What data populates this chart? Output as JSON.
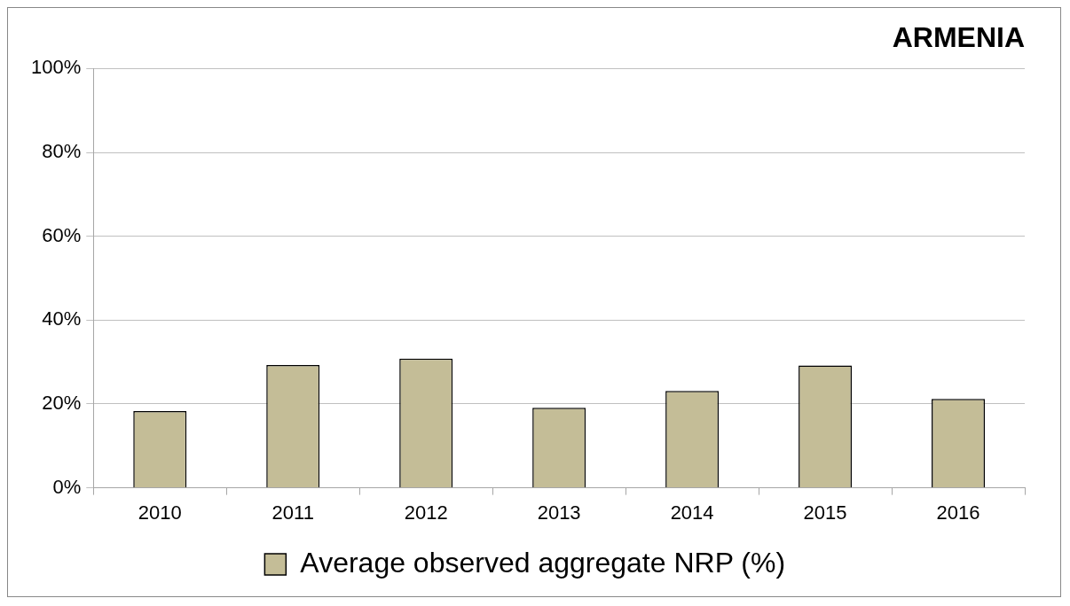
{
  "chart_data": {
    "type": "bar",
    "title": "ARMENIA",
    "categories": [
      "2010",
      "2011",
      "2012",
      "2013",
      "2014",
      "2015",
      "2016"
    ],
    "series": [
      {
        "name": "Average observed aggregate NRP (%)",
        "color": "#c4bd97",
        "values": [
          18.3,
          29.3,
          30.8,
          19.1,
          23.1,
          29.2,
          21.2
        ]
      }
    ],
    "ylim": [
      0,
      100
    ],
    "yticks": [
      {
        "value": 0,
        "label": "0%"
      },
      {
        "value": 20,
        "label": "20%"
      },
      {
        "value": 40,
        "label": "40%"
      },
      {
        "value": 60,
        "label": "60%"
      },
      {
        "value": 80,
        "label": "80%"
      },
      {
        "value": 100,
        "label": "100%"
      }
    ],
    "grid": "y",
    "legend": "bottom"
  }
}
